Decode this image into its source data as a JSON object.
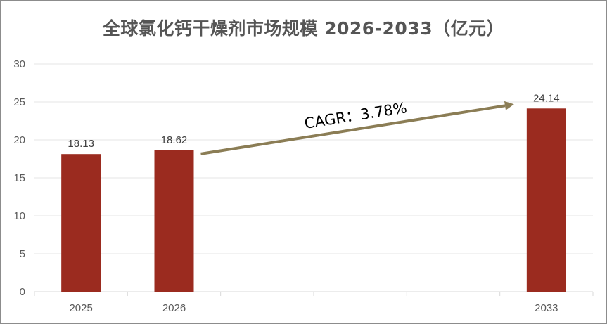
{
  "chart_data": {
    "type": "bar",
    "title": "全球氯化钙干燥剂市场规模 2026-2033（亿元）",
    "categories": [
      "2025",
      "2026",
      "",
      "",
      "",
      "2033"
    ],
    "values": [
      18.13,
      18.62,
      null,
      null,
      null,
      24.14
    ],
    "data_labels": [
      "18.13",
      "18.62",
      "",
      "",
      "",
      "24.14"
    ],
    "ylim": [
      0,
      30
    ],
    "yticks": [
      0,
      5,
      10,
      15,
      20,
      25,
      30
    ],
    "grid": true,
    "legend": "none",
    "bar_color": "#9b2b1f",
    "annotation": {
      "text": "CAGR：3.78%",
      "from_category": "2026",
      "to_category": "2033",
      "arrow_color": "#8b7d55"
    }
  }
}
